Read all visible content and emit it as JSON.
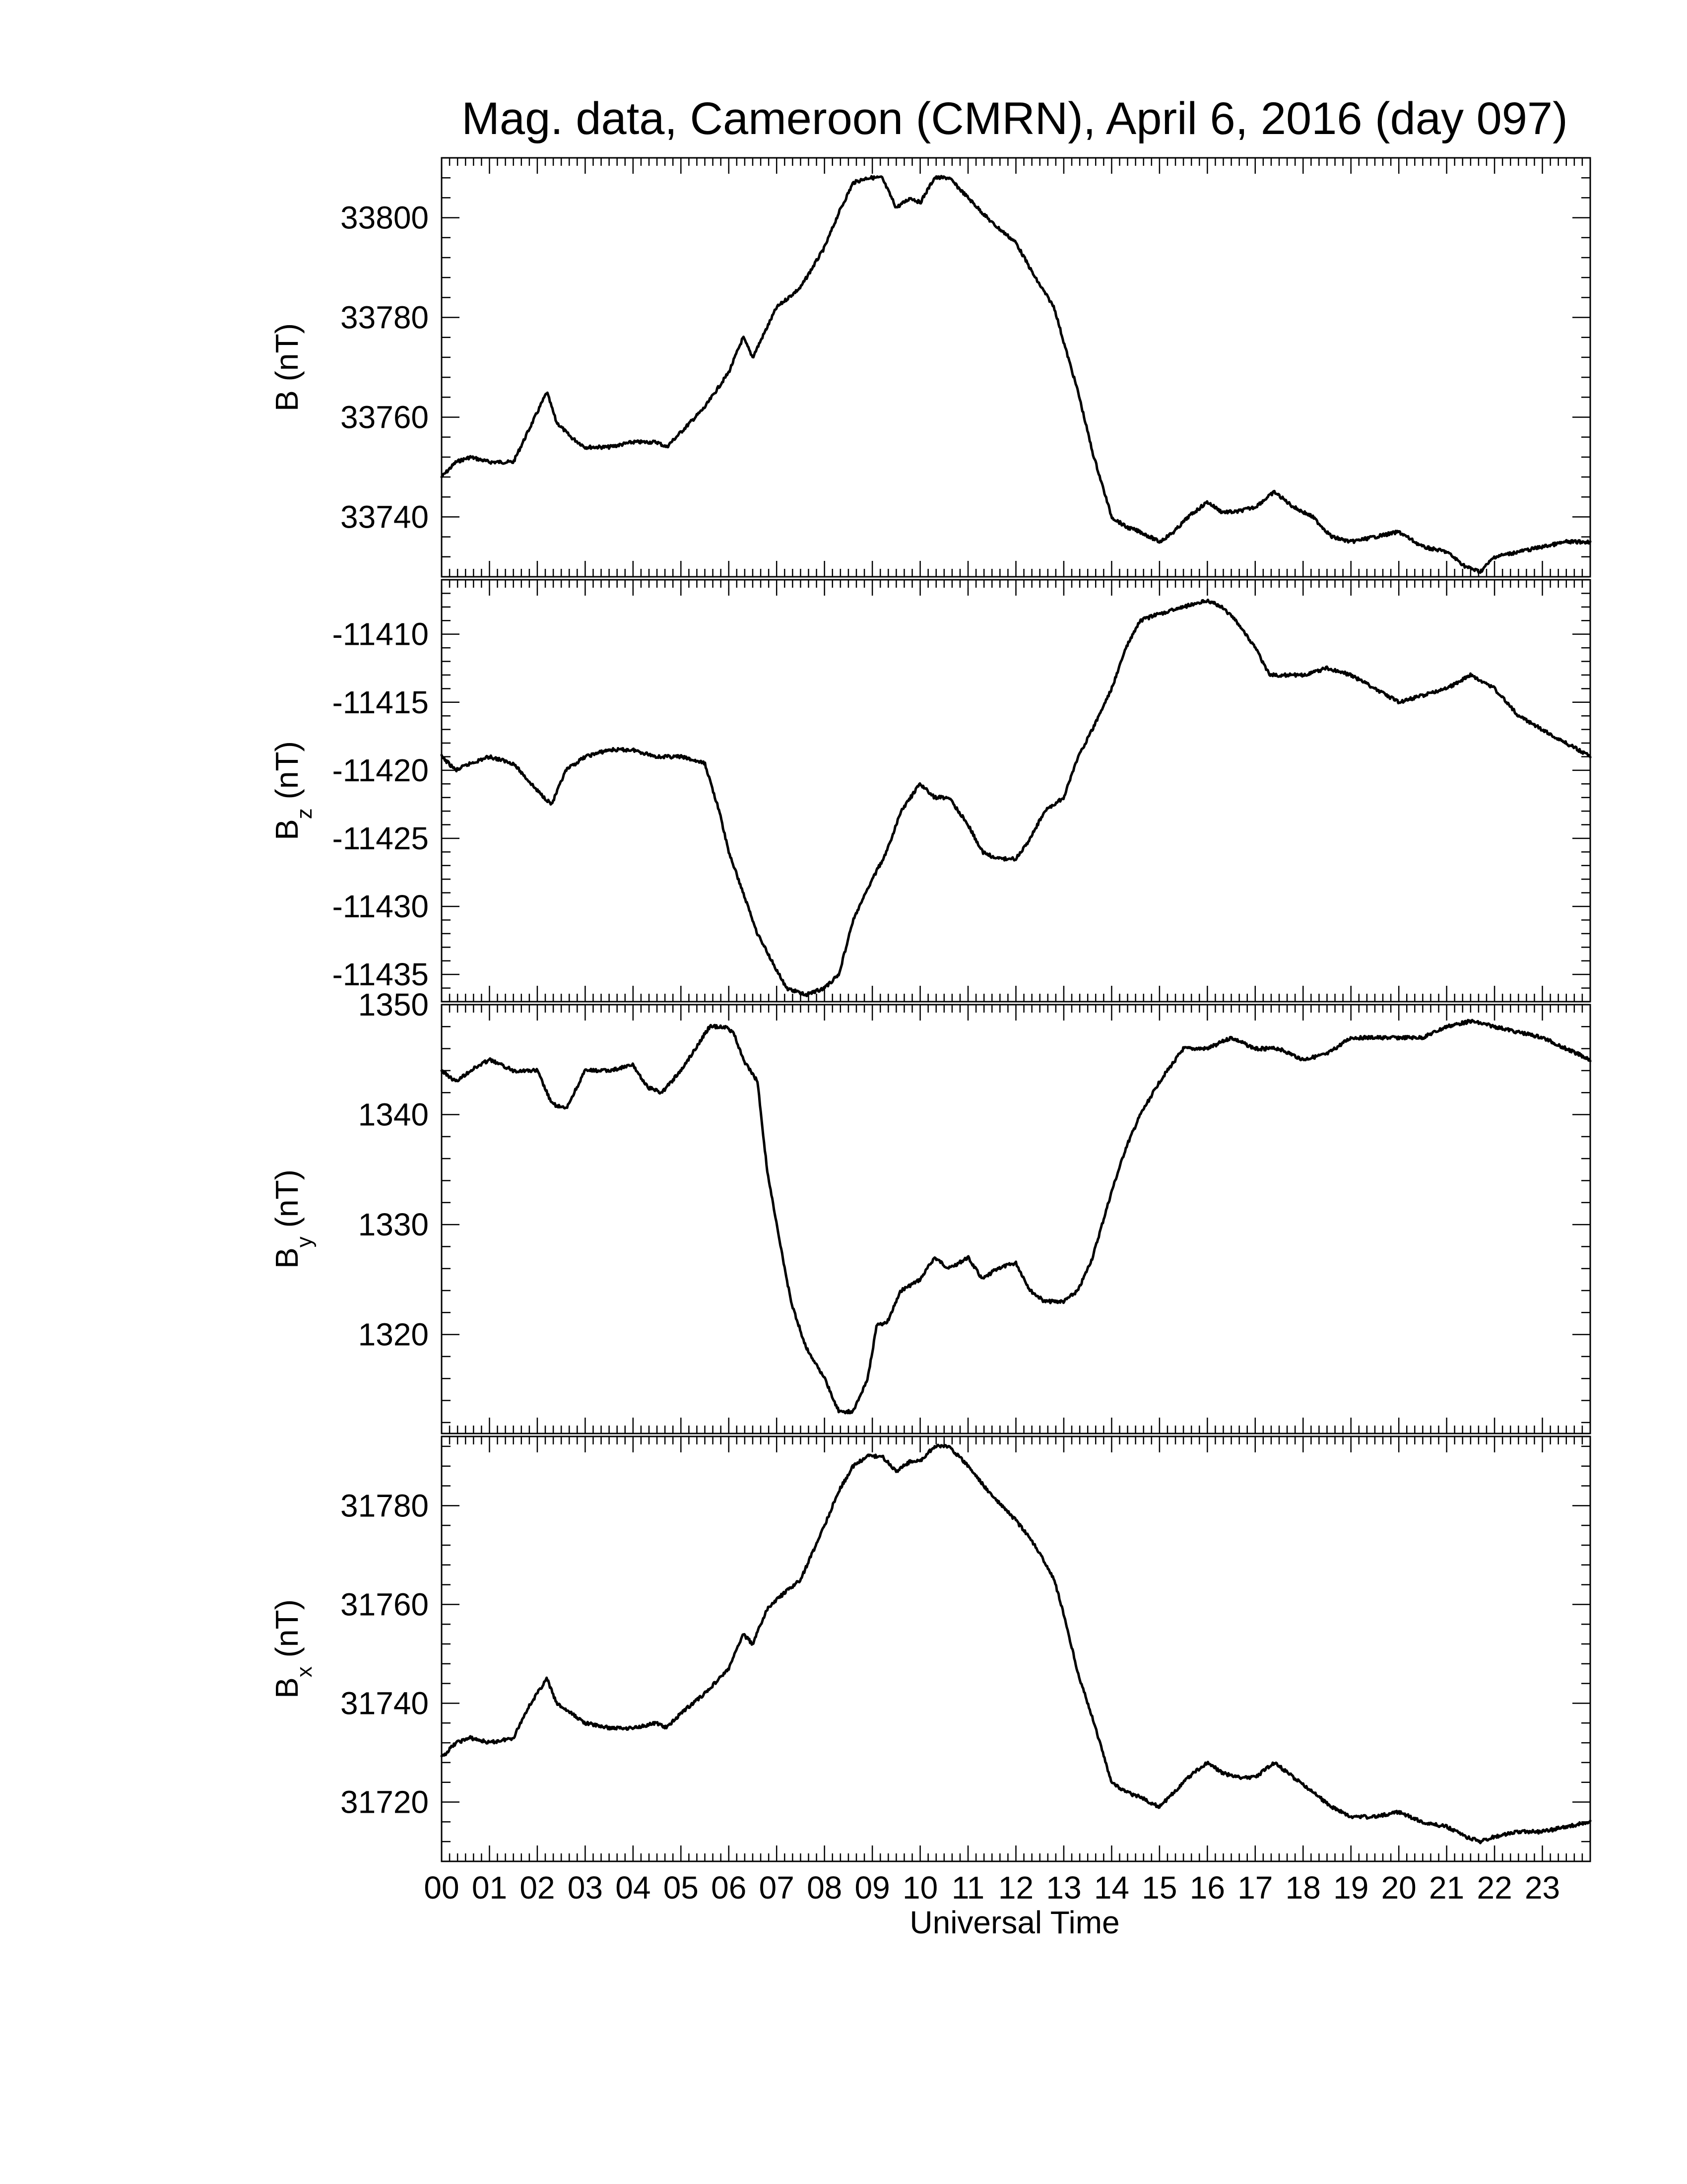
{
  "chart_data": {
    "type": "line",
    "title": "Mag. data, Cameroon (CMRN), April 6, 2016 (day 097)",
    "xlabel": "Universal Time",
    "x_tick_labels": [
      "00",
      "01",
      "02",
      "03",
      "04",
      "05",
      "06",
      "07",
      "08",
      "09",
      "10",
      "11",
      "12",
      "13",
      "14",
      "15",
      "16",
      "17",
      "18",
      "19",
      "20",
      "21",
      "22",
      "23"
    ],
    "xlim": [
      0,
      24
    ],
    "panels": [
      {
        "id": "B",
        "ylabel_main": "B",
        "ylabel_sub": "",
        "ylabel_unit": "(nT)",
        "ylim": [
          33728,
          33812
        ],
        "yticks": [
          33740,
          33760,
          33780,
          33800
        ],
        "x": [
          0,
          0.3,
          0.6,
          1.0,
          1.5,
          1.8,
          2.2,
          2.4,
          2.7,
          3.0,
          3.5,
          4.0,
          4.5,
          4.7,
          5.0,
          5.5,
          6.0,
          6.3,
          6.5,
          6.8,
          7.0,
          7.5,
          8.0,
          8.3,
          8.6,
          8.9,
          9.2,
          9.5,
          9.8,
          10.0,
          10.3,
          10.6,
          11.0,
          11.5,
          12.0,
          12.4,
          12.8,
          13.0,
          13.3,
          13.6,
          14.0,
          14.3,
          14.6,
          15.0,
          15.3,
          15.6,
          16.0,
          16.3,
          16.6,
          17.0,
          17.4,
          17.8,
          18.2,
          18.6,
          19.0,
          19.5,
          20.0,
          20.5,
          21.0,
          21.4,
          21.7,
          22.0,
          22.5,
          23.0,
          23.5,
          24.0
        ],
        "values": [
          33748,
          33751,
          33752,
          33751,
          33751,
          33757,
          33765,
          33759,
          33756,
          33754,
          33754,
          33755,
          33755,
          33754,
          33757,
          33762,
          33769,
          33776,
          33772,
          33778,
          33782,
          33786,
          33794,
          33801,
          33807,
          33808,
          33808,
          33802,
          33804,
          33803,
          33808,
          33808,
          33804,
          33799,
          33795,
          33788,
          33782,
          33775,
          33765,
          33753,
          33740,
          33738,
          33737,
          33735,
          33737,
          33740,
          33743,
          33741,
          33741,
          33742,
          33745,
          33742,
          33740,
          33736,
          33735,
          33736,
          33737,
          33734,
          33733,
          33730,
          33729,
          33732,
          33733,
          33734,
          33735,
          33735
        ]
      },
      {
        "id": "Bz",
        "ylabel_main": "B",
        "ylabel_sub": "z",
        "ylabel_unit": "(nT)",
        "ylim": [
          -11437,
          -11406
        ],
        "yticks": [
          -11435,
          -11430,
          -11425,
          -11420,
          -11415,
          -11410
        ],
        "x": [
          0,
          0.3,
          0.6,
          1.0,
          1.5,
          2.0,
          2.3,
          2.6,
          3.0,
          3.5,
          4.0,
          4.5,
          5.0,
          5.5,
          5.8,
          6.0,
          6.3,
          6.6,
          6.9,
          7.2,
          7.6,
          8.0,
          8.3,
          8.6,
          9.0,
          9.3,
          9.6,
          10.0,
          10.3,
          10.6,
          11.0,
          11.3,
          11.6,
          12.0,
          12.3,
          12.6,
          13.0,
          13.3,
          13.6,
          14.0,
          14.3,
          14.6,
          15.0,
          15.5,
          16.0,
          16.3,
          16.6,
          17.0,
          17.3,
          17.6,
          18.0,
          18.5,
          19.0,
          19.5,
          20.0,
          20.5,
          21.0,
          21.5,
          22.0,
          22.5,
          23.0,
          23.5,
          24.0
        ],
        "values": [
          -11419,
          -11420,
          -11419.5,
          -11419,
          -11419.5,
          -11421.5,
          -11422.5,
          -11420,
          -11419,
          -11418.5,
          -11418.5,
          -11419,
          -11419,
          -11419.5,
          -11423,
          -11426,
          -11429,
          -11432,
          -11434,
          -11436,
          -11436.5,
          -11436,
          -11435,
          -11431,
          -11428,
          -11426,
          -11423,
          -11421,
          -11422,
          -11422,
          -11424,
          -11426,
          -11426.5,
          -11426.5,
          -11425,
          -11423,
          -11422,
          -11419,
          -11417,
          -11414,
          -11411,
          -11409,
          -11408.5,
          -11408,
          -11407.5,
          -11408,
          -11409,
          -11411,
          -11413,
          -11413,
          -11413,
          -11412.5,
          -11413,
          -11414,
          -11415,
          -11414.5,
          -11414,
          -11413,
          -11414,
          -11416,
          -11417,
          -11418,
          -11419
        ]
      },
      {
        "id": "By",
        "ylabel_main": "B",
        "ylabel_sub": "y",
        "ylabel_unit": "(nT)",
        "ylim": [
          1311,
          1350
        ],
        "yticks": [
          1320,
          1330,
          1340,
          1350
        ],
        "x": [
          0,
          0.3,
          0.6,
          1.0,
          1.5,
          2.0,
          2.3,
          2.6,
          3.0,
          3.5,
          4.0,
          4.3,
          4.6,
          5.0,
          5.3,
          5.6,
          5.9,
          6.1,
          6.3,
          6.6,
          6.8,
          7.0,
          7.3,
          7.6,
          8.0,
          8.3,
          8.6,
          8.9,
          9.1,
          9.3,
          9.6,
          10.0,
          10.3,
          10.6,
          11.0,
          11.3,
          11.6,
          12.0,
          12.3,
          12.6,
          13.0,
          13.3,
          13.6,
          14.0,
          14.3,
          14.6,
          15.0,
          15.5,
          16.0,
          16.5,
          17.0,
          17.5,
          18.0,
          18.5,
          19.0,
          19.5,
          20.0,
          20.5,
          21.0,
          21.5,
          22.0,
          22.5,
          23.0,
          23.5,
          24.0
        ],
        "values": [
          1344,
          1343,
          1344,
          1345,
          1344,
          1344,
          1341,
          1340.5,
          1344,
          1344,
          1344.5,
          1342.5,
          1342,
          1344,
          1346,
          1348,
          1348,
          1347.5,
          1345,
          1343,
          1335,
          1330,
          1323,
          1319,
          1316,
          1313,
          1313,
          1316,
          1321,
          1321,
          1324,
          1325,
          1327,
          1326,
          1327,
          1325,
          1326,
          1326.5,
          1324,
          1323,
          1323,
          1324,
          1327,
          1333,
          1337,
          1340,
          1343,
          1346,
          1346,
          1347,
          1346,
          1346,
          1345,
          1345.5,
          1347,
          1347,
          1347,
          1347,
          1348,
          1348.5,
          1348,
          1347.5,
          1347,
          1346,
          1345
        ]
      },
      {
        "id": "Bx",
        "ylabel_main": "B",
        "ylabel_sub": "x",
        "ylabel_unit": "(nT)",
        "ylim": [
          31708,
          31794
        ],
        "yticks": [
          31720,
          31740,
          31760,
          31780
        ],
        "x": [
          0,
          0.3,
          0.6,
          1.0,
          1.5,
          1.8,
          2.2,
          2.4,
          2.7,
          3.0,
          3.5,
          4.0,
          4.5,
          4.7,
          5.0,
          5.5,
          6.0,
          6.3,
          6.5,
          6.8,
          7.0,
          7.5,
          8.0,
          8.3,
          8.6,
          8.9,
          9.2,
          9.5,
          9.8,
          10.0,
          10.3,
          10.6,
          11.0,
          11.5,
          12.0,
          12.4,
          12.8,
          13.0,
          13.3,
          13.6,
          14.0,
          14.3,
          14.6,
          15.0,
          15.3,
          15.6,
          16.0,
          16.3,
          16.6,
          17.0,
          17.4,
          17.8,
          18.2,
          18.6,
          19.0,
          19.5,
          20.0,
          20.5,
          21.0,
          21.4,
          21.7,
          22.0,
          22.5,
          23.0,
          23.5,
          24.0
        ],
        "values": [
          31729,
          31732,
          31733,
          31732,
          31733,
          31739,
          31745,
          31740,
          31738,
          31736,
          31735,
          31735,
          31736,
          31735,
          31738,
          31742,
          31747,
          31754,
          31752,
          31759,
          31761,
          31765,
          31776,
          31783,
          31788,
          31790,
          31790,
          31787,
          31789,
          31789,
          31792,
          31792,
          31788,
          31782,
          31777,
          31772,
          31765,
          31758,
          31746,
          31737,
          31724,
          31722,
          31721,
          31719,
          31722,
          31725,
          31728,
          31726,
          31725,
          31725,
          31728,
          31725,
          31722,
          31719,
          31717,
          31717,
          31718,
          31716,
          31715,
          31713,
          31712,
          31713,
          31714,
          31714,
          31715,
          31716
        ]
      }
    ]
  }
}
